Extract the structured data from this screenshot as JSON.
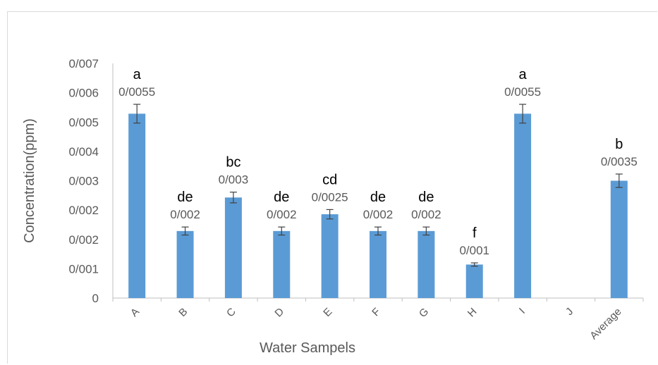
{
  "chart_data": {
    "type": "bar",
    "xlabel": "Water Sampels",
    "ylabel": "Concentration(ppm)",
    "y_ticks": [
      "0",
      "0/001",
      "0/002",
      "0/002",
      "0/003",
      "0/004",
      "0/005",
      "0/006",
      "0/007"
    ],
    "ylim": [
      0,
      0.007
    ],
    "categories": [
      "A",
      "B",
      "C",
      "D",
      "E",
      "F",
      "G",
      "H",
      "I",
      "J",
      "Average"
    ],
    "values": [
      0.0055,
      0.002,
      0.003,
      0.002,
      0.0025,
      0.002,
      0.002,
      0.001,
      0.0055,
      null,
      0.0035
    ],
    "error": [
      0.00028,
      0.00012,
      0.00016,
      0.00012,
      0.00014,
      0.00012,
      0.00012,
      5e-05,
      0.00028,
      null,
      0.0002
    ],
    "data_labels": [
      "0/0055",
      "0/002",
      "0/003",
      "0/002",
      "0/0025",
      "0/002",
      "0/002",
      "0/001",
      "0/0055",
      "",
      "0/0035"
    ],
    "significance_letters": [
      "a",
      "de",
      "bc",
      "de",
      "cd",
      "de",
      "de",
      "f",
      "a",
      "",
      "b"
    ],
    "bar_color": "#5b9bd5",
    "error_bar_color": "#404040",
    "axis_color": "#bfbfbf",
    "grid": false,
    "legend": "none"
  }
}
